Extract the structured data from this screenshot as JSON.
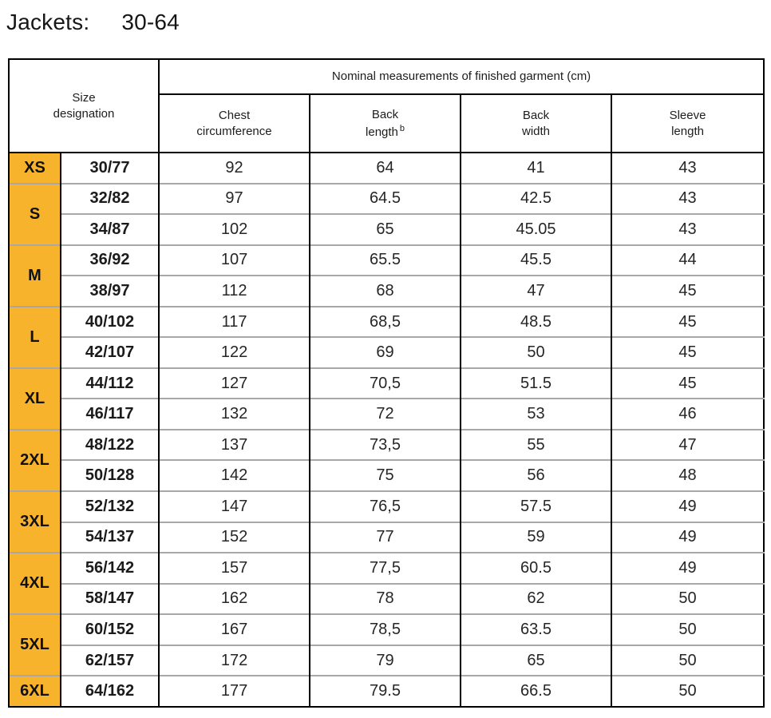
{
  "page": {
    "title_label": "Jackets:",
    "title_range": "30-64"
  },
  "table": {
    "accent_color": "#f8b32c",
    "grid_line_color": "#a8a8a8",
    "corner_header": {
      "line1": "Size",
      "line2": "designation"
    },
    "span_header": "Nominal measurements of finished garment (cm)",
    "columns": [
      {
        "line1": "Chest",
        "line2": "circumference"
      },
      {
        "line1": "Back",
        "line2": "length",
        "sup": "b"
      },
      {
        "line1": "Back",
        "line2": "width"
      },
      {
        "line1": "Sleeve",
        "line2": "length"
      }
    ],
    "groups": [
      {
        "size": "XS",
        "rows": [
          {
            "code": "30/77",
            "chest": "92",
            "back_length": "64",
            "back_width": "41",
            "sleeve": "43"
          }
        ]
      },
      {
        "size": "S",
        "rows": [
          {
            "code": "32/82",
            "chest": "97",
            "back_length": "64.5",
            "back_width": "42.5",
            "sleeve": "43"
          },
          {
            "code": "34/87",
            "chest": "102",
            "back_length": "65",
            "back_width": "45.05",
            "sleeve": "43"
          }
        ]
      },
      {
        "size": "M",
        "rows": [
          {
            "code": "36/92",
            "chest": "107",
            "back_length": "65.5",
            "back_width": "45.5",
            "sleeve": "44"
          },
          {
            "code": "38/97",
            "chest": "112",
            "back_length": "68",
            "back_width": "47",
            "sleeve": "45"
          }
        ]
      },
      {
        "size": "L",
        "rows": [
          {
            "code": "40/102",
            "chest": "117",
            "back_length": "68,5",
            "back_width": "48.5",
            "sleeve": "45"
          },
          {
            "code": "42/107",
            "chest": "122",
            "back_length": "69",
            "back_width": "50",
            "sleeve": "45"
          }
        ]
      },
      {
        "size": "XL",
        "rows": [
          {
            "code": "44/112",
            "chest": "127",
            "back_length": "70,5",
            "back_width": "51.5",
            "sleeve": "45"
          },
          {
            "code": "46/117",
            "chest": "132",
            "back_length": "72",
            "back_width": "53",
            "sleeve": "46"
          }
        ]
      },
      {
        "size": "2XL",
        "rows": [
          {
            "code": "48/122",
            "chest": "137",
            "back_length": "73,5",
            "back_width": "55",
            "sleeve": "47"
          },
          {
            "code": "50/128",
            "chest": "142",
            "back_length": "75",
            "back_width": "56",
            "sleeve": "48"
          }
        ]
      },
      {
        "size": "3XL",
        "rows": [
          {
            "code": "52/132",
            "chest": "147",
            "back_length": "76,5",
            "back_width": "57.5",
            "sleeve": "49"
          },
          {
            "code": "54/137",
            "chest": "152",
            "back_length": "77",
            "back_width": "59",
            "sleeve": "49"
          }
        ]
      },
      {
        "size": "4XL",
        "rows": [
          {
            "code": "56/142",
            "chest": "157",
            "back_length": "77,5",
            "back_width": "60.5",
            "sleeve": "49"
          },
          {
            "code": "58/147",
            "chest": "162",
            "back_length": "78",
            "back_width": "62",
            "sleeve": "50"
          }
        ]
      },
      {
        "size": "5XL",
        "rows": [
          {
            "code": "60/152",
            "chest": "167",
            "back_length": "78,5",
            "back_width": "63.5",
            "sleeve": "50"
          },
          {
            "code": "62/157",
            "chest": "172",
            "back_length": "79",
            "back_width": "65",
            "sleeve": "50"
          }
        ]
      },
      {
        "size": "6XL",
        "rows": [
          {
            "code": "64/162",
            "chest": "177",
            "back_length": "79.5",
            "back_width": "66.5",
            "sleeve": "50"
          }
        ]
      }
    ]
  }
}
